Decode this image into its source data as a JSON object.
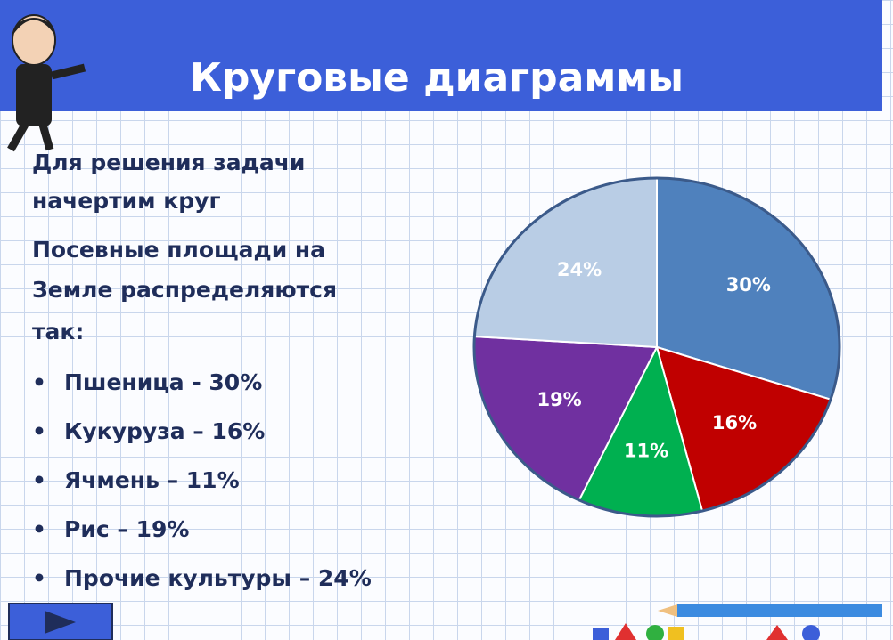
{
  "header": {
    "title": "Круговые диаграммы"
  },
  "text": {
    "lines": [
      "Для решения задачи",
      "начертим круг",
      "Посевные площади на",
      "Земле распределяются",
      "так:"
    ],
    "bullets": [
      "Пшеница - 30%",
      "Кукуруза – 16%",
      "Ячмень – 11%",
      "Рис – 19%",
      "Прочие культуры – 24%"
    ]
  },
  "chart_data": {
    "type": "pie",
    "values": [
      30,
      16,
      11,
      19,
      24
    ],
    "value_labels": [
      "30%",
      "16%",
      "11%",
      "19%",
      "24%"
    ],
    "colors": [
      "#4f81bd",
      "#c00000",
      "#00b050",
      "#7030a0",
      "#b9cde5"
    ]
  }
}
